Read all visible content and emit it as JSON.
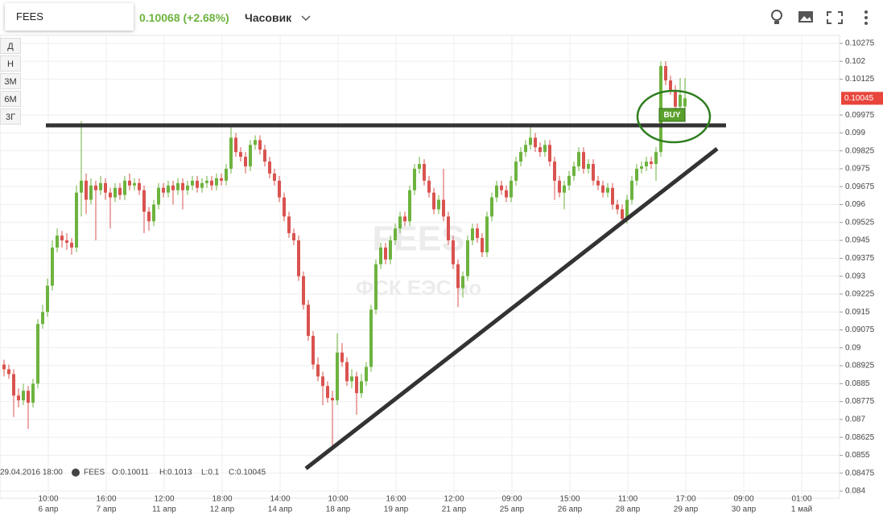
{
  "toolbar": {
    "symbol": "FEES",
    "quote": "0.10068 (+2.68%)",
    "interval": "Часовик"
  },
  "range_buttons": [
    "Д",
    "Н",
    "3М",
    "6М",
    "3Г"
  ],
  "chart_data": {
    "type": "candlestick",
    "watermark": {
      "ticker": "FEES",
      "name": "ФСК ЕЭС ао"
    },
    "crosshair_time": "29.04.2016 18:00",
    "legend": {
      "symbol": "FEES",
      "open": "O:0.10011",
      "high": "H:0.1013",
      "low": "L:0.1",
      "close": "C:0.10045"
    },
    "annotation": "BUY",
    "last_price": 0.10045,
    "up_color": "#6db33f",
    "down_color": "#d9534f",
    "ylim": [
      0.084,
      0.10275
    ],
    "yticks": [
      0.084,
      0.08475,
      0.0855,
      0.08625,
      0.087,
      0.08775,
      0.0885,
      0.08925,
      0.09,
      0.09075,
      0.0915,
      0.09225,
      0.093,
      0.09375,
      0.0945,
      0.09525,
      0.096,
      0.09675,
      0.0975,
      0.09825,
      0.099,
      0.09975,
      0.10125,
      0.102,
      0.10275
    ],
    "grid": true,
    "x_tick_labels": [
      [
        "10:00",
        "6 апр"
      ],
      [
        "16:00",
        "7 апр"
      ],
      [
        "12:00",
        "11 апр"
      ],
      [
        "18:00",
        "12 апр"
      ],
      [
        "14:00",
        "14 апр"
      ],
      [
        "10:00",
        "18 апр"
      ],
      [
        "16:00",
        "19 апр"
      ],
      [
        "12:00",
        "21 апр"
      ],
      [
        "09:00",
        "25 апр"
      ],
      [
        "15:00",
        "26 апр"
      ],
      [
        "11:00",
        "28 апр"
      ],
      [
        "17:00",
        "29 апр"
      ],
      [
        "09:00",
        "30 апр"
      ],
      [
        "01:00",
        "1 май"
      ]
    ],
    "candles": [
      [
        0.0893,
        0.0895,
        0.0888,
        0.0891
      ],
      [
        0.0891,
        0.0893,
        0.0887,
        0.0889
      ],
      [
        0.0889,
        0.0891,
        0.0871,
        0.088
      ],
      [
        0.088,
        0.0883,
        0.0875,
        0.0878
      ],
      [
        0.0878,
        0.0885,
        0.0876,
        0.0882
      ],
      [
        0.0882,
        0.0884,
        0.0866,
        0.0877
      ],
      [
        0.0877,
        0.0887,
        0.0875,
        0.0885
      ],
      [
        0.0885,
        0.0912,
        0.0883,
        0.091
      ],
      [
        0.091,
        0.0918,
        0.0908,
        0.0915
      ],
      [
        0.0915,
        0.0929,
        0.0913,
        0.0926
      ],
      [
        0.0926,
        0.0945,
        0.0924,
        0.0942
      ],
      [
        0.0942,
        0.095,
        0.094,
        0.0947
      ],
      [
        0.0947,
        0.0949,
        0.0942,
        0.0945
      ],
      [
        0.0945,
        0.0948,
        0.0941,
        0.0944
      ],
      [
        0.0944,
        0.0946,
        0.0939,
        0.0942
      ],
      [
        0.0942,
        0.0968,
        0.094,
        0.0965
      ],
      [
        0.0965,
        0.0995,
        0.0955,
        0.097
      ],
      [
        0.097,
        0.0973,
        0.0956,
        0.0962
      ],
      [
        0.0962,
        0.0971,
        0.096,
        0.0968
      ],
      [
        0.0968,
        0.097,
        0.0945,
        0.0966
      ],
      [
        0.0966,
        0.0972,
        0.0964,
        0.0969
      ],
      [
        0.0969,
        0.0971,
        0.0962,
        0.0965
      ],
      [
        0.0965,
        0.0967,
        0.095,
        0.0963
      ],
      [
        0.0963,
        0.0969,
        0.0961,
        0.0967
      ],
      [
        0.0967,
        0.0969,
        0.0962,
        0.0964
      ],
      [
        0.0964,
        0.0972,
        0.0962,
        0.097
      ],
      [
        0.097,
        0.0973,
        0.0966,
        0.0968
      ],
      [
        0.0968,
        0.0971,
        0.0966,
        0.0969
      ],
      [
        0.0969,
        0.0971,
        0.0964,
        0.0966
      ],
      [
        0.0966,
        0.0968,
        0.0948,
        0.0957
      ],
      [
        0.0957,
        0.0959,
        0.0949,
        0.0953
      ],
      [
        0.0953,
        0.0962,
        0.0951,
        0.096
      ],
      [
        0.096,
        0.0969,
        0.0958,
        0.0967
      ],
      [
        0.0967,
        0.0969,
        0.0963,
        0.0965
      ],
      [
        0.0965,
        0.097,
        0.0963,
        0.0968
      ],
      [
        0.0968,
        0.097,
        0.096,
        0.0966
      ],
      [
        0.0966,
        0.0971,
        0.0964,
        0.0969
      ],
      [
        0.0969,
        0.0971,
        0.0958,
        0.0966
      ],
      [
        0.0966,
        0.097,
        0.0964,
        0.0968
      ],
      [
        0.0968,
        0.0972,
        0.0966,
        0.097
      ],
      [
        0.097,
        0.0972,
        0.0965,
        0.0967
      ],
      [
        0.0967,
        0.0971,
        0.0965,
        0.0969
      ],
      [
        0.0969,
        0.0972,
        0.0967,
        0.097
      ],
      [
        0.097,
        0.0972,
        0.0966,
        0.0968
      ],
      [
        0.0968,
        0.0973,
        0.0966,
        0.0971
      ],
      [
        0.0971,
        0.0973,
        0.0968,
        0.097
      ],
      [
        0.097,
        0.0977,
        0.0968,
        0.0975
      ],
      [
        0.0975,
        0.0993,
        0.0973,
        0.0988
      ],
      [
        0.0988,
        0.099,
        0.098,
        0.0982
      ],
      [
        0.0982,
        0.0984,
        0.0978,
        0.098
      ],
      [
        0.098,
        0.0982,
        0.0973,
        0.0976
      ],
      [
        0.0976,
        0.0987,
        0.0974,
        0.0985
      ],
      [
        0.0985,
        0.0989,
        0.0983,
        0.0987
      ],
      [
        0.0987,
        0.0989,
        0.0981,
        0.0983
      ],
      [
        0.0983,
        0.0985,
        0.0976,
        0.0978
      ],
      [
        0.0978,
        0.098,
        0.0971,
        0.0973
      ],
      [
        0.0973,
        0.0975,
        0.0968,
        0.097
      ],
      [
        0.097,
        0.0972,
        0.0961,
        0.0963
      ],
      [
        0.0963,
        0.0965,
        0.0953,
        0.0955
      ],
      [
        0.0955,
        0.0957,
        0.0946,
        0.0948
      ],
      [
        0.0948,
        0.095,
        0.0943,
        0.0945
      ],
      [
        0.0945,
        0.0947,
        0.0928,
        0.093
      ],
      [
        0.093,
        0.0932,
        0.0916,
        0.0918
      ],
      [
        0.0918,
        0.092,
        0.0903,
        0.0905
      ],
      [
        0.0905,
        0.0907,
        0.0891,
        0.0893
      ],
      [
        0.0893,
        0.0896,
        0.0886,
        0.0888
      ],
      [
        0.0888,
        0.089,
        0.0876,
        0.0884
      ],
      [
        0.0884,
        0.0886,
        0.0877,
        0.0879
      ],
      [
        0.0879,
        0.0882,
        0.0858,
        0.0878
      ],
      [
        0.0878,
        0.0906,
        0.0876,
        0.0898
      ],
      [
        0.0898,
        0.0902,
        0.0892,
        0.0894
      ],
      [
        0.0894,
        0.0896,
        0.0884,
        0.0886
      ],
      [
        0.0886,
        0.0891,
        0.0883,
        0.0888
      ],
      [
        0.0888,
        0.089,
        0.0872,
        0.0881
      ],
      [
        0.0881,
        0.0889,
        0.0879,
        0.0886
      ],
      [
        0.0886,
        0.0894,
        0.0884,
        0.0892
      ],
      [
        0.0892,
        0.0918,
        0.089,
        0.0916
      ],
      [
        0.0916,
        0.0937,
        0.0914,
        0.0935
      ],
      [
        0.0935,
        0.0944,
        0.0933,
        0.0942
      ],
      [
        0.0942,
        0.0944,
        0.0935,
        0.0937
      ],
      [
        0.0937,
        0.0947,
        0.0935,
        0.0945
      ],
      [
        0.0945,
        0.0952,
        0.0943,
        0.095
      ],
      [
        0.095,
        0.0957,
        0.0948,
        0.0955
      ],
      [
        0.0955,
        0.0957,
        0.0951,
        0.0953
      ],
      [
        0.0953,
        0.0968,
        0.0951,
        0.0966
      ],
      [
        0.0966,
        0.0977,
        0.0964,
        0.0975
      ],
      [
        0.0975,
        0.098,
        0.0973,
        0.0977
      ],
      [
        0.0977,
        0.0979,
        0.0968,
        0.097
      ],
      [
        0.097,
        0.0972,
        0.0963,
        0.0965
      ],
      [
        0.0965,
        0.0967,
        0.0956,
        0.0958
      ],
      [
        0.0958,
        0.0964,
        0.0956,
        0.0962
      ],
      [
        0.0962,
        0.0975,
        0.0953,
        0.0955
      ],
      [
        0.0955,
        0.0957,
        0.0943,
        0.0945
      ],
      [
        0.0945,
        0.0947,
        0.0933,
        0.0935
      ],
      [
        0.0935,
        0.0937,
        0.0917,
        0.0925
      ],
      [
        0.0925,
        0.0932,
        0.0921,
        0.093
      ],
      [
        0.093,
        0.0947,
        0.0928,
        0.0945
      ],
      [
        0.0945,
        0.0952,
        0.0943,
        0.095
      ],
      [
        0.095,
        0.0952,
        0.0944,
        0.0946
      ],
      [
        0.0946,
        0.0948,
        0.0938,
        0.094
      ],
      [
        0.094,
        0.0957,
        0.0938,
        0.0955
      ],
      [
        0.0955,
        0.0965,
        0.0953,
        0.0963
      ],
      [
        0.0963,
        0.097,
        0.0961,
        0.0968
      ],
      [
        0.0968,
        0.097,
        0.0964,
        0.0966
      ],
      [
        0.0966,
        0.0968,
        0.0961,
        0.0963
      ],
      [
        0.0963,
        0.0972,
        0.0961,
        0.097
      ],
      [
        0.097,
        0.098,
        0.0968,
        0.0978
      ],
      [
        0.0978,
        0.0984,
        0.0976,
        0.0982
      ],
      [
        0.0982,
        0.0987,
        0.098,
        0.0985
      ],
      [
        0.0985,
        0.0993,
        0.0983,
        0.0988
      ],
      [
        0.0988,
        0.099,
        0.0982,
        0.0984
      ],
      [
        0.0984,
        0.0986,
        0.098,
        0.0982
      ],
      [
        0.0982,
        0.0987,
        0.098,
        0.0985
      ],
      [
        0.0985,
        0.0987,
        0.0976,
        0.0978
      ],
      [
        0.0978,
        0.098,
        0.0962,
        0.097
      ],
      [
        0.097,
        0.0972,
        0.0963,
        0.0965
      ],
      [
        0.0965,
        0.097,
        0.0958,
        0.0968
      ],
      [
        0.0968,
        0.0974,
        0.0966,
        0.0972
      ],
      [
        0.0972,
        0.0978,
        0.097,
        0.0976
      ],
      [
        0.0976,
        0.0984,
        0.0974,
        0.0982
      ],
      [
        0.0982,
        0.0984,
        0.0973,
        0.0975
      ],
      [
        0.0975,
        0.0979,
        0.0973,
        0.0977
      ],
      [
        0.0977,
        0.0979,
        0.0968,
        0.097
      ],
      [
        0.097,
        0.0972,
        0.0966,
        0.0968
      ],
      [
        0.0968,
        0.097,
        0.0963,
        0.0965
      ],
      [
        0.0965,
        0.0969,
        0.0963,
        0.0967
      ],
      [
        0.0967,
        0.0969,
        0.0958,
        0.096
      ],
      [
        0.096,
        0.0962,
        0.0956,
        0.0958
      ],
      [
        0.0958,
        0.096,
        0.0952,
        0.0954
      ],
      [
        0.0954,
        0.0964,
        0.0952,
        0.0962
      ],
      [
        0.0962,
        0.0972,
        0.096,
        0.097
      ],
      [
        0.097,
        0.0977,
        0.0968,
        0.0975
      ],
      [
        0.0975,
        0.0978,
        0.0973,
        0.0976
      ],
      [
        0.0976,
        0.098,
        0.0974,
        0.0978
      ],
      [
        0.0978,
        0.098,
        0.0975,
        0.0977
      ],
      [
        0.0977,
        0.0984,
        0.097,
        0.0982
      ],
      [
        0.0982,
        0.102,
        0.098,
        0.1018
      ],
      [
        0.1018,
        0.102,
        0.101,
        0.1012
      ],
      [
        0.1012,
        0.1014,
        0.1006,
        0.1008
      ],
      [
        0.1008,
        0.101,
        0.0995,
        0.1001
      ],
      [
        0.1001,
        0.1013,
        0.0999,
        0.1006
      ],
      [
        0.10011,
        0.1013,
        0.1,
        0.10045
      ]
    ]
  }
}
